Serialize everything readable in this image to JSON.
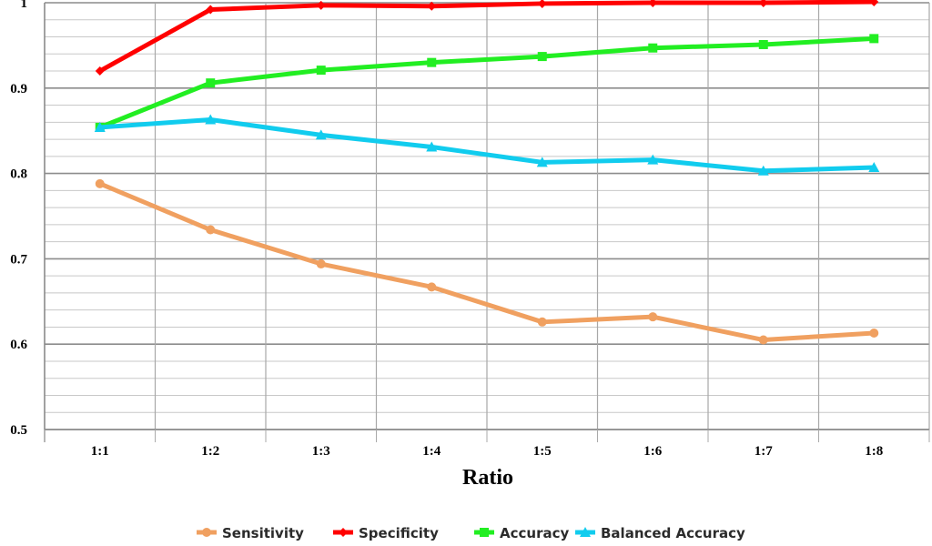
{
  "chart_data": {
    "type": "line",
    "categories": [
      "1:1",
      "1:2",
      "1:3",
      "1:4",
      "1:5",
      "1:6",
      "1:7",
      "1:8"
    ],
    "xlabel": "Ratio",
    "ylabel": "",
    "ylim": [
      0.5,
      1.0
    ],
    "y_ticks": [
      "0.5",
      "0.6",
      "0.7",
      "0.8",
      "0.9",
      "1"
    ],
    "grid": true,
    "legend_position": "bottom",
    "series": [
      {
        "name": "Sensitivity",
        "color": "#F0A060",
        "marker": "circle",
        "values": [
          0.788,
          0.734,
          0.694,
          0.667,
          0.626,
          0.632,
          0.605,
          0.613
        ]
      },
      {
        "name": "Specificity",
        "color": "#FF0000",
        "marker": "diamond",
        "values": [
          0.92,
          0.992,
          0.997,
          0.996,
          0.999,
          1.0,
          1.0,
          1.001
        ]
      },
      {
        "name": "Accuracy",
        "color": "#22EE22",
        "marker": "square",
        "values": [
          0.854,
          0.906,
          0.921,
          0.93,
          0.937,
          0.947,
          0.951,
          0.958
        ]
      },
      {
        "name": "Balanced Accuracy",
        "color": "#11CCEE",
        "marker": "triangle",
        "values": [
          0.854,
          0.863,
          0.845,
          0.831,
          0.813,
          0.816,
          0.803,
          0.807
        ]
      }
    ]
  }
}
